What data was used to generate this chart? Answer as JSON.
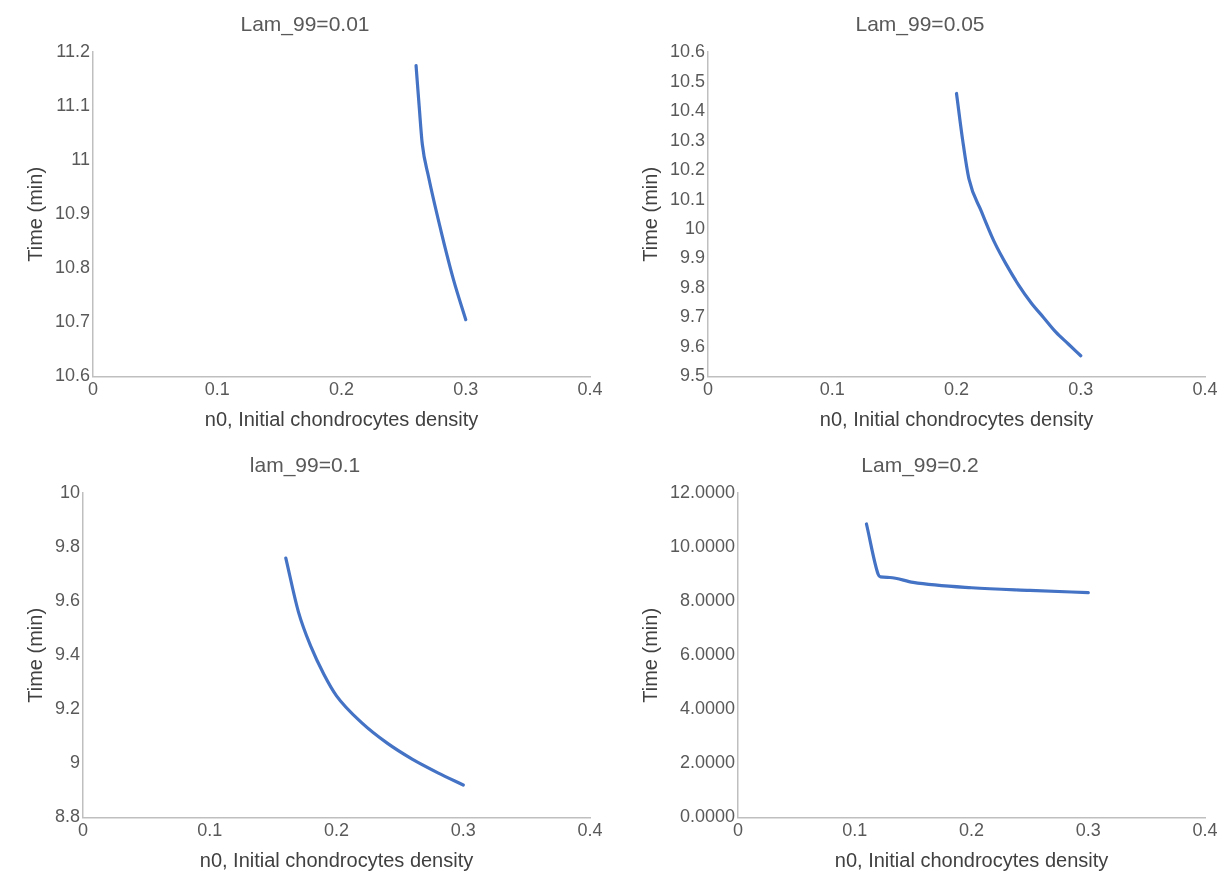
{
  "chart_data": [
    {
      "type": "line",
      "title": "Lam_99=0.01",
      "xlabel": "n0, Initial chondrocytes density",
      "ylabel": "Time (min)",
      "xlim": [
        0,
        0.4
      ],
      "xticks": [
        0,
        0.1,
        0.2,
        0.3,
        0.4
      ],
      "ylim": [
        10.6,
        11.2
      ],
      "yticks": [
        10.6,
        10.7,
        10.8,
        10.9,
        11,
        11.1,
        11.2
      ],
      "grid": false,
      "legend": false,
      "marker": "none",
      "series": [
        {
          "color": "#4472c4",
          "x": [
            0.26,
            0.2625,
            0.265,
            0.27,
            0.28,
            0.29,
            0.3
          ],
          "values": [
            11.175,
            11.1,
            11.03,
            10.97,
            10.87,
            10.78,
            10.705
          ]
        }
      ]
    },
    {
      "type": "line",
      "title": "Lam_99=0.05",
      "xlabel": "n0, Initial chondrocytes density",
      "ylabel": "Time (min)",
      "xlim": [
        0,
        0.4
      ],
      "xticks": [
        0,
        0.1,
        0.2,
        0.3,
        0.4
      ],
      "ylim": [
        9.5,
        10.6
      ],
      "yticks": [
        9.5,
        9.6,
        9.7,
        9.8,
        9.9,
        10,
        10.1,
        10.2,
        10.3,
        10.4,
        10.5,
        10.6
      ],
      "grid": false,
      "legend": false,
      "marker": "none",
      "series": [
        {
          "color": "#4472c4",
          "x": [
            0.2,
            0.205,
            0.21,
            0.22,
            0.23,
            0.24,
            0.25,
            0.26,
            0.27,
            0.28,
            0.29,
            0.3
          ],
          "values": [
            10.46,
            10.3,
            10.17,
            10.06,
            9.96,
            9.88,
            9.81,
            9.75,
            9.7,
            9.65,
            9.61,
            9.57
          ]
        }
      ]
    },
    {
      "type": "line",
      "title": "lam_99=0.1",
      "xlabel": "n0, Initial chondrocytes density",
      "ylabel": "Time (min)",
      "xlim": [
        0,
        0.4
      ],
      "xticks": [
        0,
        0.1,
        0.2,
        0.3,
        0.4
      ],
      "ylim": [
        8.8,
        10
      ],
      "yticks": [
        8.8,
        9,
        9.2,
        9.4,
        9.6,
        9.8,
        10
      ],
      "grid": false,
      "legend": false,
      "marker": "none",
      "series": [
        {
          "color": "#4472c4",
          "x": [
            0.16,
            0.17,
            0.18,
            0.19,
            0.2,
            0.22,
            0.24,
            0.26,
            0.28,
            0.3
          ],
          "values": [
            9.76,
            9.56,
            9.43,
            9.33,
            9.25,
            9.15,
            9.075,
            9.015,
            8.965,
            8.92
          ]
        }
      ]
    },
    {
      "type": "line",
      "title": "Lam_99=0.2",
      "xlabel": "n0, Initial chondrocytes density",
      "ylabel": "Time (min)",
      "xlim": [
        0,
        0.4
      ],
      "xticks": [
        0,
        0.1,
        0.2,
        0.3,
        0.4
      ],
      "ylim": [
        0,
        12
      ],
      "yticks": [
        {
          "value": 0,
          "label": "0.0000"
        },
        {
          "value": 2,
          "label": "2.0000"
        },
        {
          "value": 4,
          "label": "4.0000"
        },
        {
          "value": 6,
          "label": "6.0000"
        },
        {
          "value": 8,
          "label": "8.0000"
        },
        {
          "value": 10,
          "label": "10.0000"
        },
        {
          "value": 12,
          "label": "12.0000"
        }
      ],
      "grid": false,
      "legend": false,
      "marker": "none",
      "series": [
        {
          "color": "#4472c4",
          "x": [
            0.11,
            0.12,
            0.122,
            0.13,
            0.15,
            0.2,
            0.25,
            0.3
          ],
          "values": [
            10.86,
            9.0,
            8.9,
            8.88,
            8.7,
            8.5,
            8.4,
            8.32
          ]
        }
      ]
    }
  ]
}
